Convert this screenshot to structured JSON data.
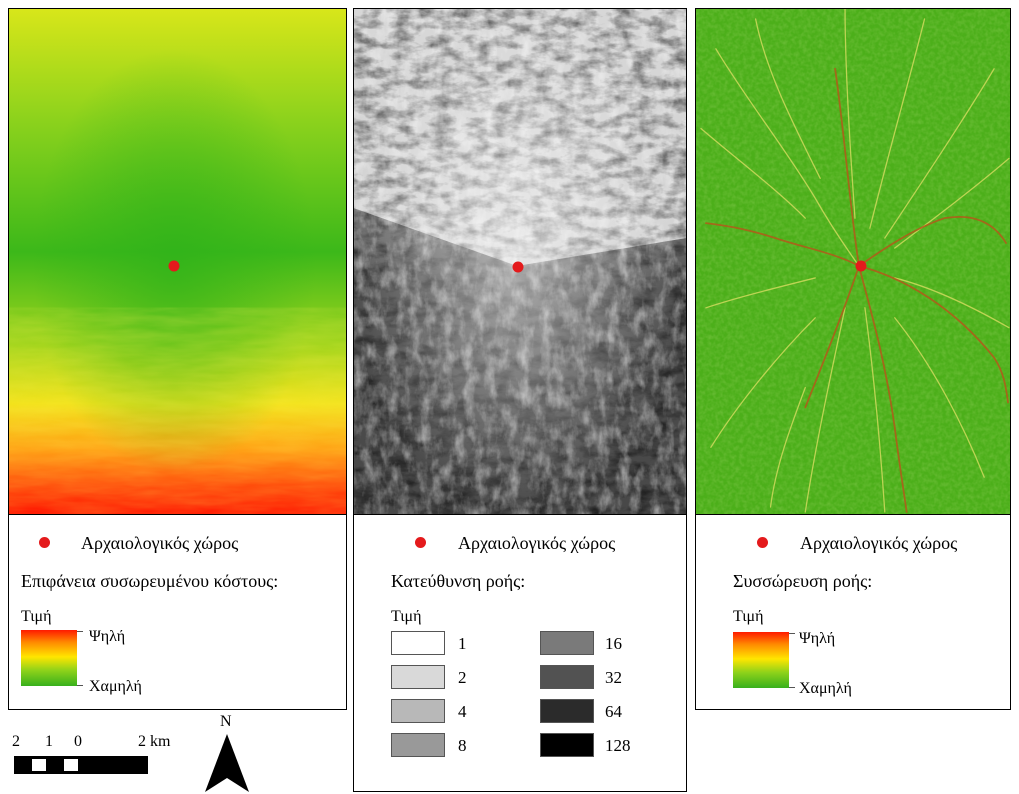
{
  "panels": {
    "cost": {
      "legend": {
        "site_label": "Αρχαιολογικός χώρος",
        "title": "Επιφάνεια συσωρευμένου κόστους:",
        "value_label": "Τιμή",
        "high_label": "Ψηλή",
        "low_label": "Χαμηλή"
      }
    },
    "direction": {
      "legend": {
        "site_label": "Αρχαιολογικός χώρος",
        "title": "Κατεύθυνση ροής:",
        "value_label": "Τιμή",
        "classes": [
          {
            "label": "1",
            "color": "#ffffff"
          },
          {
            "label": "2",
            "color": "#d9d9d9"
          },
          {
            "label": "4",
            "color": "#b8b8b8"
          },
          {
            "label": "8",
            "color": "#999999"
          },
          {
            "label": "16",
            "color": "#7a7a7a"
          },
          {
            "label": "32",
            "color": "#525252"
          },
          {
            "label": "64",
            "color": "#2b2b2b"
          },
          {
            "label": "128",
            "color": "#000000"
          }
        ]
      }
    },
    "accumulation": {
      "legend": {
        "site_label": "Αρχαιολογικός χώρος",
        "title": "Συσσώρευση ροής:",
        "value_label": "Τιμή",
        "high_label": "Ψηλή",
        "low_label": "Χαμηλή"
      }
    }
  },
  "scale_bar": {
    "labels": [
      "2",
      "1",
      "0",
      "2 km"
    ]
  },
  "north_arrow": {
    "label": "N"
  },
  "colors": {
    "site": "#e41a1c",
    "ramp_high": "#ff1a00",
    "ramp_mid": "#ffe600",
    "ramp_low": "#38b01c",
    "stream_bg": "#4caf1a"
  }
}
